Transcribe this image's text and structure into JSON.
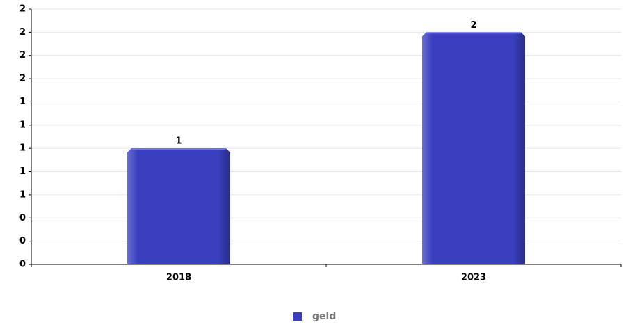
{
  "chart_data": {
    "type": "bar",
    "categories": [
      "2018",
      "2023"
    ],
    "series": [
      {
        "name": "geld",
        "color": "#3a3fbf",
        "values": [
          1,
          2
        ]
      }
    ],
    "ylim": [
      0,
      2.2
    ],
    "yticks": [
      0,
      {
        "value": 0.2,
        "label": "0"
      },
      {
        "value": 0.4,
        "label": "0"
      },
      {
        "value": 0.6,
        "label": "1"
      },
      {
        "value": 0.8,
        "label": "1"
      },
      1,
      {
        "value": 1.2,
        "label": "1"
      },
      {
        "value": 1.4,
        "label": "1"
      },
      {
        "value": 1.6,
        "label": "2"
      },
      {
        "value": 1.8,
        "label": "2"
      },
      2,
      {
        "value": 2.2,
        "label": "2"
      }
    ],
    "grid": true,
    "legend": "bottom"
  }
}
